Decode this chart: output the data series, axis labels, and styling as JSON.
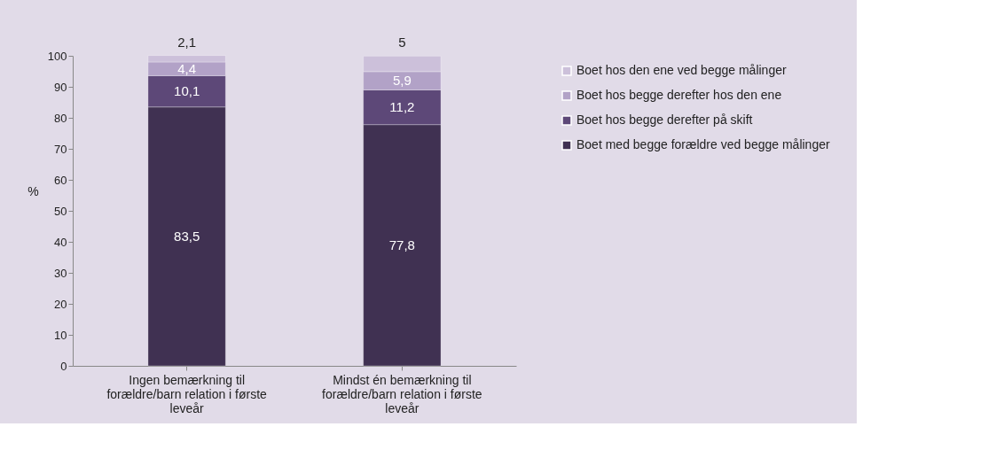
{
  "chart_data": {
    "type": "bar",
    "stacked": true,
    "ylabel": "%",
    "categories": [
      "Ingen bemærkning til forældre/barn relation i første leveår",
      "Mindst én bemærkning til forældre/barn relation i første leveår"
    ],
    "series": [
      {
        "name": "Boet med begge forældre ved begge målinger",
        "color": "#403152",
        "values": [
          83.5,
          77.8
        ],
        "value_labels": [
          "83,5",
          "77,8"
        ]
      },
      {
        "name": "Boet hos begge derefter på skift",
        "color": "#5d4878",
        "values": [
          10.1,
          11.2
        ],
        "value_labels": [
          "10,1",
          "11,2"
        ]
      },
      {
        "name": "Boet hos begge  derefter hos den ene",
        "color": "#b2a2c7",
        "values": [
          4.4,
          5.9
        ],
        "value_labels": [
          "4,4",
          "5,9"
        ]
      },
      {
        "name": "Boet hos den ene ved begge målinger",
        "color": "#ccc0da",
        "values": [
          2.1,
          5
        ],
        "value_labels": [
          "2,1",
          "5"
        ]
      }
    ],
    "ylim": [
      0,
      100
    ],
    "yticks": [
      0,
      10,
      20,
      30,
      40,
      50,
      60,
      70,
      80,
      90,
      100
    ],
    "grid": false,
    "legend": "right"
  }
}
